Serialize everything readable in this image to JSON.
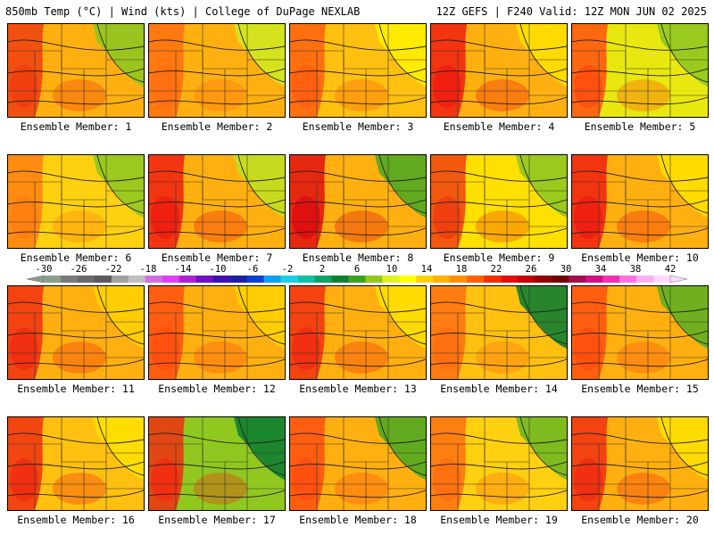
{
  "header": {
    "left": "850mb Temp (°C) | Wind (kts) | College of DuPage NEXLAB",
    "right": "12Z GEFS | F240 Valid: 12Z MON JUN 02 2025"
  },
  "colorbar": {
    "ticks": [
      "-30",
      "-26",
      "-22",
      "-18",
      "-14",
      "-10",
      "-6",
      "-2",
      "2",
      "6",
      "10",
      "14",
      "18",
      "22",
      "26",
      "30",
      "34",
      "38",
      "42"
    ],
    "colors": [
      "#8c9c8c",
      "#7a7a7a",
      "#6a6a6a",
      "#5a5a5a",
      "#a0a0a0",
      "#c0c0c0",
      "#d070e0",
      "#e040f0",
      "#b020d0",
      "#7010c0",
      "#4010b0",
      "#2020a0",
      "#1040d0",
      "#10a0f0",
      "#20d0e0",
      "#10c0a0",
      "#10a060",
      "#108030",
      "#40a020",
      "#90c820",
      "#e0f020",
      "#ffff00",
      "#ffd000",
      "#ffb000",
      "#ff9000",
      "#ff6000",
      "#f03000",
      "#e01010",
      "#c00000",
      "#900000",
      "#700000",
      "#a01050",
      "#d01080",
      "#f030b0",
      "#ff70e0",
      "#ffb0f0",
      "#ffd8ff"
    ]
  },
  "members": [
    {
      "label": "Ensemble Member: 1",
      "fill": "#ffb010",
      "hot": "#f04010",
      "cool": "#90c820"
    },
    {
      "label": "Ensemble Member: 2",
      "fill": "#ffb010",
      "hot": "#ff7010",
      "cool": "#d0e820"
    },
    {
      "label": "Ensemble Member: 3",
      "fill": "#ffc010",
      "hot": "#ff6010",
      "cool": "#ffee00"
    },
    {
      "label": "Ensemble Member: 4",
      "fill": "#ffb010",
      "hot": "#f02010",
      "cool": "#ffe000"
    },
    {
      "label": "Ensemble Member: 5",
      "fill": "#e8e810",
      "hot": "#ff5010",
      "cool": "#90c820"
    },
    {
      "label": "Ensemble Member: 6",
      "fill": "#ffd010",
      "hot": "#ff8010",
      "cool": "#90c820"
    },
    {
      "label": "Ensemble Member: 7",
      "fill": "#ffb010",
      "hot": "#f02010",
      "cool": "#c0e020"
    },
    {
      "label": "Ensemble Member: 8",
      "fill": "#ffb010",
      "hot": "#e01010",
      "cool": "#50a820"
    },
    {
      "label": "Ensemble Member: 9",
      "fill": "#ffe000",
      "hot": "#f04010",
      "cool": "#90c820"
    },
    {
      "label": "Ensemble Member: 10",
      "fill": "#ffb010",
      "hot": "#f02010",
      "cool": "#ffe000"
    },
    {
      "label": "Ensemble Member: 11",
      "fill": "#ffb010",
      "hot": "#f03010",
      "cool": "#ffd000"
    },
    {
      "label": "Ensemble Member: 12",
      "fill": "#ffb010",
      "hot": "#ff5010",
      "cool": "#ffd000"
    },
    {
      "label": "Ensemble Member: 13",
      "fill": "#ffb010",
      "hot": "#f03010",
      "cool": "#ffe000"
    },
    {
      "label": "Ensemble Member: 14",
      "fill": "#ffc010",
      "hot": "#ff7010",
      "cool": "#108030"
    },
    {
      "label": "Ensemble Member: 15",
      "fill": "#ffb010",
      "hot": "#ff5010",
      "cool": "#60b020"
    },
    {
      "label": "Ensemble Member: 16",
      "fill": "#ffc010",
      "hot": "#f03010",
      "cool": "#ffe000"
    },
    {
      "label": "Ensemble Member: 17",
      "fill": "#90c820",
      "hot": "#f03010",
      "cool": "#108030"
    },
    {
      "label": "Ensemble Member: 18",
      "fill": "#ffb010",
      "hot": "#ff5010",
      "cool": "#50a820"
    },
    {
      "label": "Ensemble Member: 19",
      "fill": "#ffd010",
      "hot": "#ff7010",
      "cool": "#70b820"
    },
    {
      "label": "Ensemble Member: 20",
      "fill": "#ffb010",
      "hot": "#f03010",
      "cool": "#ffe000"
    }
  ]
}
